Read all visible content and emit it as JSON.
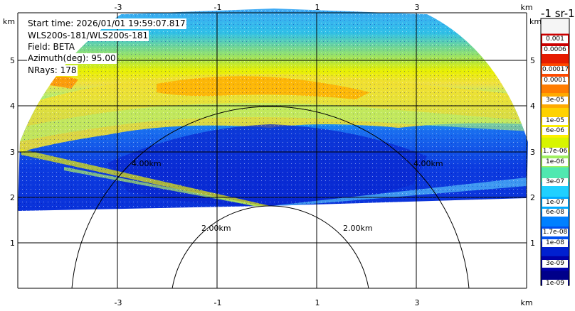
{
  "info": {
    "start_time": "Start time: 2026/01/01 19:59:07.817",
    "instrument": "WLS200s-181/WLS200s-181",
    "field": "Field: BETA",
    "azimuth": "Azimuth(deg): 95.00",
    "nrays": "NRays: 178"
  },
  "axes": {
    "x_ticks": [
      "-3",
      "-1",
      "1",
      "3"
    ],
    "y_ticks": [
      "1",
      "2",
      "3",
      "4",
      "5"
    ],
    "unit": "km"
  },
  "range_rings": {
    "labels": [
      "2.00km",
      "2.00km",
      "4.00km",
      "4.00km"
    ]
  },
  "colorbar": {
    "title": "-1 sr-1",
    "labels": [
      "0.001",
      "0.0006",
      "0.00017",
      "0.0001",
      "3e-05",
      "1e-05",
      "6e-06",
      "1.7e-06",
      "1e-06",
      "3e-07",
      "1e-07",
      "6e-08",
      "1.7e-08",
      "1e-08",
      "3e-09",
      "1e-09"
    ],
    "colors": [
      "#f5f5f5",
      "#cc0000",
      "#e61b00",
      "#ff4a00",
      "#ff7d00",
      "#ffaa00",
      "#ffd200",
      "#fff000",
      "#d8f500",
      "#a0f060",
      "#50e8b0",
      "#20d0ff",
      "#00a8ff",
      "#0080ff",
      "#0050f0",
      "#0020d0",
      "#0000a8",
      "#00008a"
    ]
  }
}
